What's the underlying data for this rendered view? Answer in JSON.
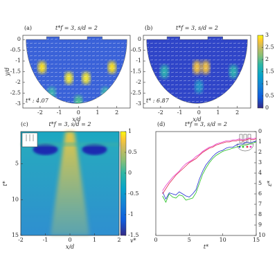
{
  "chart_data": [
    {
      "type": "heatmap",
      "panel": "(a)",
      "title": "t*f = 3, s/d = 2",
      "xlabel": "x/d",
      "ylabel": "y/d",
      "xlim": [
        -2.9,
        2.7
      ],
      "ylim": [
        0.2,
        -3.2
      ],
      "xticks": [
        -2,
        -1,
        0,
        1,
        2
      ],
      "yticks": [
        0,
        -0.5,
        -1,
        -1.5,
        -2,
        -2.5,
        -3
      ],
      "annotation": "t* : 4.07"
    },
    {
      "type": "heatmap",
      "panel": "(b)",
      "title": "t*f = 3, s/d = 2",
      "xlabel": "x/d",
      "xlim": [
        -2.9,
        2.7
      ],
      "ylim": [
        0.2,
        -3.2
      ],
      "xticks": [
        -2,
        -1,
        0,
        1,
        2
      ],
      "yticks": [
        0,
        -0.5,
        -1,
        -1.5,
        -2,
        -2.5,
        -3
      ],
      "annotation": "t* : 6.87",
      "clim": [
        0,
        3
      ],
      "cticks": [
        0,
        0.5,
        1,
        1.5,
        2,
        2.5,
        3
      ]
    },
    {
      "type": "heatmap",
      "panel": "(c)",
      "title": "t*f = 3, s/d = 2",
      "xlabel": "x/d",
      "ylabel": "t*",
      "xlim": [
        -2,
        2
      ],
      "ylim": [
        0.5,
        15
      ],
      "xticks": [
        -2,
        -1,
        0,
        1,
        2
      ],
      "yticks": [
        5,
        10,
        15
      ],
      "clim": [
        -1.5,
        1
      ],
      "cticks": [
        1,
        0.5,
        0,
        -0.5,
        -1,
        -1.5
      ],
      "clabel": "v*"
    },
    {
      "type": "line",
      "panel": "(d)",
      "title": "t*f = 3, s/d = 2",
      "xlabel": "t*",
      "ylabel": "ε*",
      "xlim": [
        0,
        15
      ],
      "ylim": [
        0,
        10
      ],
      "xticks": [
        0,
        5,
        10,
        15
      ],
      "yticks": [
        0,
        1,
        2,
        3,
        4,
        5,
        6,
        7,
        8,
        9,
        10
      ],
      "y_axis_side": "right",
      "x": [
        1,
        1.5,
        2,
        2.5,
        3,
        3.5,
        4,
        4.5,
        5,
        5.5,
        6,
        6.5,
        7,
        7.5,
        8,
        8.5,
        9,
        9.5,
        10,
        10.5,
        11,
        11.5,
        12,
        12.5,
        13,
        13.5,
        14,
        14.5,
        15
      ],
      "series": [
        {
          "color": "#1f2fd0",
          "values": [
            5.8,
            6.5,
            5.9,
            6.0,
            6.1,
            5.8,
            6.0,
            6.2,
            6.3,
            6.0,
            5.6,
            4.6,
            3.8,
            3.2,
            2.8,
            2.4,
            2.1,
            1.9,
            1.8,
            1.6,
            1.5,
            1.5,
            1.3,
            1.2,
            1.2,
            1.0,
            1.1,
            1.0,
            0.9
          ]
        },
        {
          "color": "#22c01e",
          "values": [
            6.2,
            6.8,
            6.0,
            6.3,
            6.4,
            6.1,
            6.2,
            6.6,
            6.5,
            6.4,
            5.9,
            5.0,
            4.1,
            3.5,
            3.0,
            2.6,
            2.3,
            2.1,
            1.9,
            1.8,
            1.7,
            1.6,
            1.5,
            1.4,
            1.3,
            1.3,
            1.2,
            1.1,
            1.0
          ]
        },
        {
          "color": "#e0204a",
          "values": [
            6.0,
            5.5,
            5.0,
            4.6,
            4.2,
            3.9,
            3.6,
            3.3,
            3.0,
            2.8,
            2.6,
            2.3,
            2.0,
            1.8,
            1.6,
            1.5,
            1.3,
            1.2,
            1.1,
            1.0,
            1.0,
            0.9,
            0.9,
            0.8,
            0.9,
            0.8,
            0.7,
            0.8,
            0.7
          ]
        },
        {
          "color": "#e838c8",
          "values": [
            5.7,
            5.2,
            4.8,
            4.4,
            4.1,
            3.8,
            3.4,
            3.1,
            2.9,
            2.7,
            2.4,
            2.2,
            1.9,
            1.7,
            1.5,
            1.4,
            1.2,
            1.1,
            1.0,
            0.9,
            0.9,
            0.8,
            0.8,
            0.7,
            0.8,
            0.7,
            0.6,
            0.7,
            0.6
          ]
        }
      ]
    }
  ]
}
